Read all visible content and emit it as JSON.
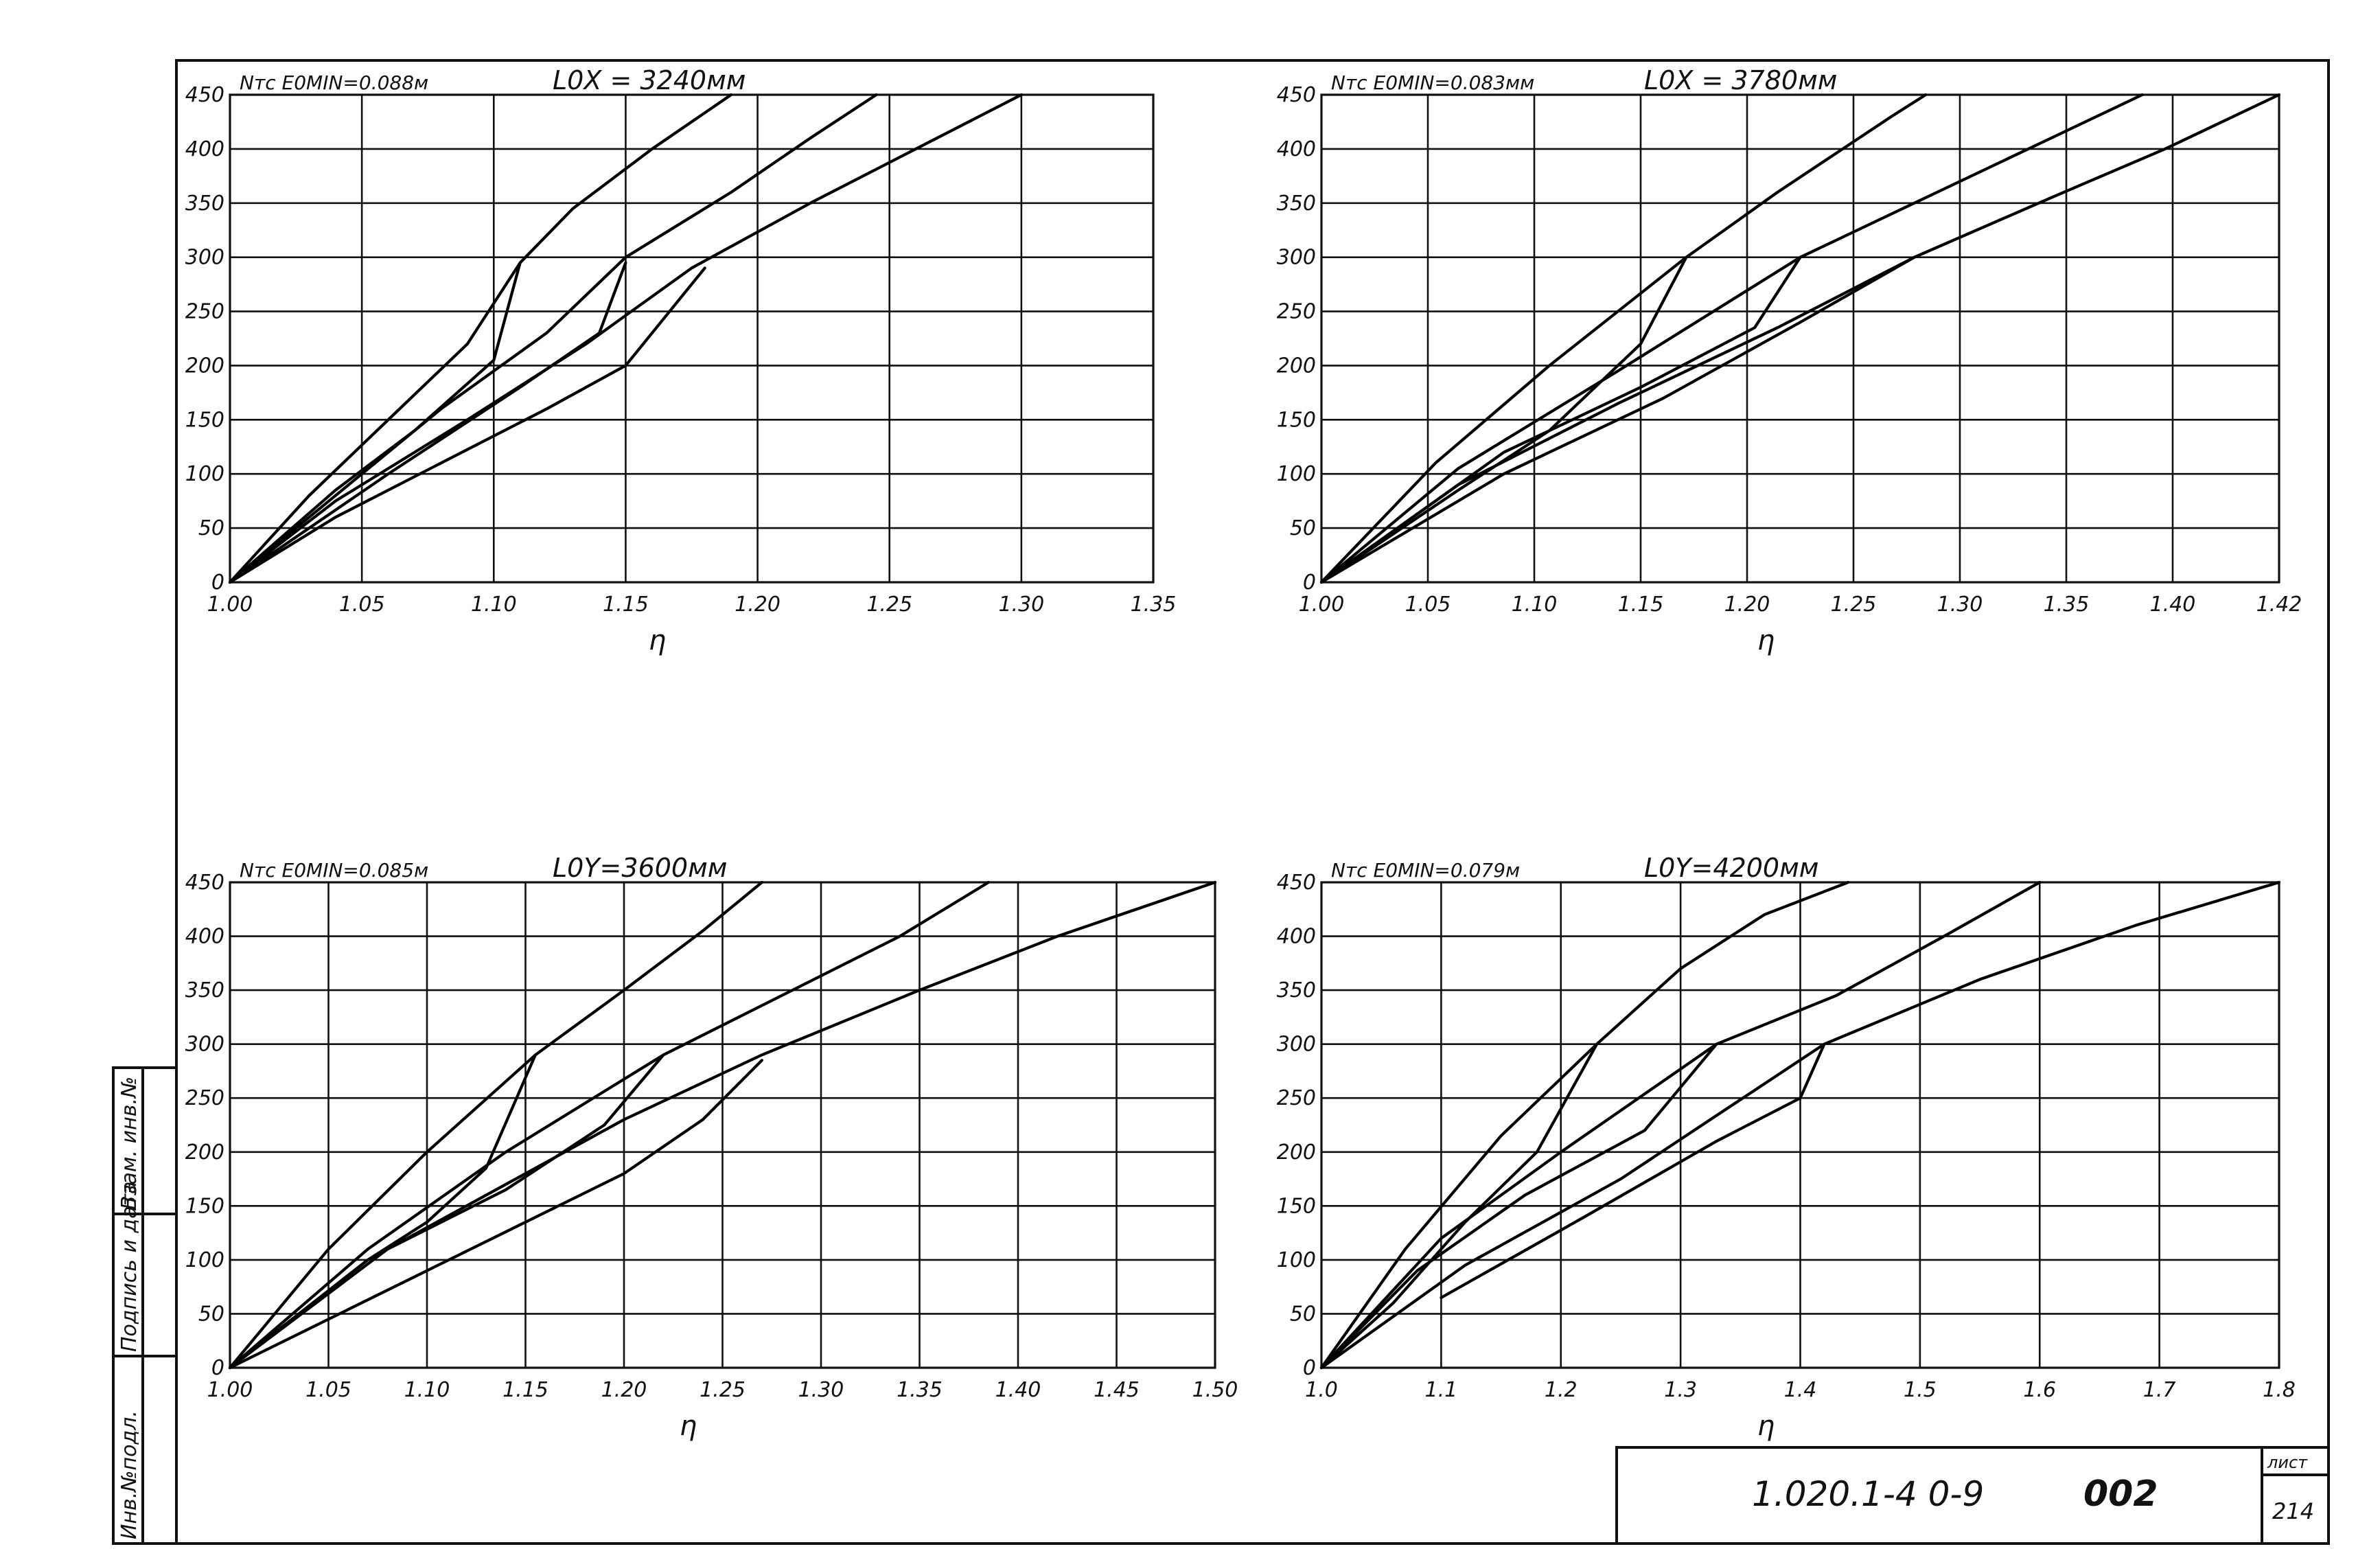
{
  "chart_data": [
    {
      "type": "line",
      "header_left": "Nтс E0MIN=0.088м",
      "header_right": "L0X = 3240мм",
      "xlabel": "η",
      "xlim": [
        1.0,
        1.35
      ],
      "ylim": [
        0,
        450
      ],
      "x_ticks": [
        "1.00",
        "1.05",
        "1.10",
        "1.15",
        "1.20",
        "1.25",
        "1.30",
        "1.35"
      ],
      "y_ticks": [
        "0",
        "50",
        "100",
        "150",
        "200",
        "250",
        "300",
        "350",
        "400",
        "450"
      ],
      "grid": true,
      "series": [
        {
          "points": [
            [
              1.0,
              0
            ],
            [
              1.03,
              80
            ],
            [
              1.06,
              150
            ],
            [
              1.09,
              220
            ],
            [
              1.11,
              295
            ],
            [
              1.13,
              345
            ],
            [
              1.16,
              400
            ],
            [
              1.19,
              450
            ]
          ]
        },
        {
          "points": [
            [
              1.0,
              0
            ],
            [
              1.04,
              80
            ],
            [
              1.08,
              160
            ],
            [
              1.12,
              230
            ],
            [
              1.15,
              300
            ],
            [
              1.19,
              360
            ],
            [
              1.22,
              410
            ],
            [
              1.245,
              450
            ]
          ]
        },
        {
          "points": [
            [
              1.0,
              0
            ],
            [
              1.04,
              75
            ],
            [
              1.09,
              150
            ],
            [
              1.135,
              220
            ],
            [
              1.175,
              290
            ],
            [
              1.22,
              350
            ],
            [
              1.26,
              400
            ],
            [
              1.3,
              450
            ]
          ]
        },
        {
          "points": [
            [
              1.0,
              0
            ],
            [
              1.04,
              60
            ],
            [
              1.08,
              110
            ],
            [
              1.12,
              160
            ],
            [
              1.15,
              200
            ],
            [
              1.18,
              290
            ]
          ]
        },
        {
          "points": [
            [
              1.0,
              0
            ],
            [
              1.04,
              85
            ],
            [
              1.07,
              140
            ],
            [
              1.1,
              205
            ],
            [
              1.11,
              295
            ]
          ]
        },
        {
          "points": [
            [
              1.0,
              0
            ],
            [
              1.06,
              100
            ],
            [
              1.11,
              180
            ],
            [
              1.14,
              230
            ],
            [
              1.15,
              295
            ]
          ]
        }
      ]
    },
    {
      "type": "line",
      "header_left": "Nтс E0MIN=0.083мм",
      "header_right": "L0X = 3780мм",
      "xlabel": "η",
      "xlim": [
        1.0,
        1.42
      ],
      "ylim": [
        0,
        450
      ],
      "x_ticks": [
        "1.00",
        "1.05",
        "1.10",
        "1.15",
        "1.20",
        "1.25",
        "1.30",
        "1.35",
        "1.40",
        "1.42"
      ],
      "y_ticks": [
        "0",
        "50",
        "100",
        "150",
        "200",
        "250",
        "300",
        "350",
        "400",
        "450"
      ],
      "grid": true,
      "series": [
        {
          "points": [
            [
              1.0,
              0
            ],
            [
              1.05,
              110
            ],
            [
              1.1,
              200
            ],
            [
              1.16,
              300
            ],
            [
              1.2,
              360
            ],
            [
              1.25,
              430
            ],
            [
              1.265,
              450
            ]
          ]
        },
        {
          "points": [
            [
              1.0,
              0
            ],
            [
              1.06,
              105
            ],
            [
              1.13,
              195
            ],
            [
              1.21,
              300
            ],
            [
              1.27,
              360
            ],
            [
              1.32,
              410
            ],
            [
              1.36,
              450
            ]
          ]
        },
        {
          "points": [
            [
              1.0,
              0
            ],
            [
              1.06,
              90
            ],
            [
              1.13,
              165
            ],
            [
              1.2,
              235
            ],
            [
              1.26,
              300
            ],
            [
              1.32,
              355
            ],
            [
              1.37,
              400
            ],
            [
              1.42,
              450
            ]
          ]
        },
        {
          "points": [
            [
              1.0,
              0
            ],
            [
              1.08,
              100
            ],
            [
              1.15,
              170
            ],
            [
              1.21,
              240
            ],
            [
              1.26,
              300
            ]
          ]
        },
        {
          "points": [
            [
              1.0,
              0
            ],
            [
              1.06,
              85
            ],
            [
              1.1,
              140
            ],
            [
              1.14,
              220
            ],
            [
              1.16,
              300
            ]
          ]
        },
        {
          "points": [
            [
              1.0,
              0
            ],
            [
              1.08,
              120
            ],
            [
              1.14,
              180
            ],
            [
              1.19,
              235
            ],
            [
              1.21,
              300
            ]
          ]
        }
      ]
    },
    {
      "type": "line",
      "header_left": "Nтс E0MIN=0.085м",
      "header_right": "L0Y=3600мм",
      "xlabel": "η",
      "xlim": [
        1.0,
        1.5
      ],
      "ylim": [
        0,
        450
      ],
      "x_ticks": [
        "1.00",
        "1.05",
        "1.10",
        "1.15",
        "1.20",
        "1.25",
        "1.30",
        "1.35",
        "1.40",
        "1.45",
        "1.50"
      ],
      "y_ticks": [
        "0",
        "50",
        "100",
        "150",
        "200",
        "250",
        "300",
        "350",
        "400",
        "450"
      ],
      "grid": true,
      "series": [
        {
          "points": [
            [
              1.0,
              0
            ],
            [
              1.05,
              110
            ],
            [
              1.1,
              200
            ],
            [
              1.155,
              290
            ],
            [
              1.2,
              350
            ],
            [
              1.24,
              405
            ],
            [
              1.27,
              450
            ]
          ]
        },
        {
          "points": [
            [
              1.0,
              0
            ],
            [
              1.07,
              110
            ],
            [
              1.14,
              200
            ],
            [
              1.22,
              290
            ],
            [
              1.28,
              345
            ],
            [
              1.34,
              400
            ],
            [
              1.385,
              450
            ]
          ]
        },
        {
          "points": [
            [
              1.0,
              0
            ],
            [
              1.07,
              100
            ],
            [
              1.15,
              180
            ],
            [
              1.2,
              230
            ],
            [
              1.27,
              290
            ],
            [
              1.35,
              350
            ],
            [
              1.42,
              400
            ],
            [
              1.5,
              450
            ]
          ]
        },
        {
          "points": [
            [
              1.0,
              0
            ],
            [
              1.1,
              90
            ],
            [
              1.2,
              180
            ],
            [
              1.24,
              230
            ],
            [
              1.27,
              285
            ]
          ]
        },
        {
          "points": [
            [
              1.0,
              0
            ],
            [
              1.07,
              100
            ],
            [
              1.1,
              135
            ],
            [
              1.13,
              185
            ],
            [
              1.155,
              290
            ]
          ]
        },
        {
          "points": [
            [
              1.0,
              0
            ],
            [
              1.08,
              110
            ],
            [
              1.14,
              165
            ],
            [
              1.19,
              225
            ],
            [
              1.22,
              290
            ]
          ]
        }
      ]
    },
    {
      "type": "line",
      "header_left": "Nтс E0MIN=0.079м",
      "header_right": "L0Y=4200мм",
      "xlabel": "η",
      "xlim": [
        1.0,
        1.8
      ],
      "ylim": [
        0,
        450
      ],
      "x_ticks": [
        "1.0",
        "1.1",
        "1.2",
        "1.3",
        "1.4",
        "1.5",
        "1.6",
        "1.7",
        "1.8"
      ],
      "y_ticks": [
        "0",
        "50",
        "100",
        "150",
        "200",
        "250",
        "300",
        "350",
        "400",
        "450"
      ],
      "grid": true,
      "series": [
        {
          "points": [
            [
              1.0,
              0
            ],
            [
              1.07,
              110
            ],
            [
              1.15,
              215
            ],
            [
              1.23,
              300
            ],
            [
              1.3,
              370
            ],
            [
              1.37,
              420
            ],
            [
              1.44,
              450
            ]
          ]
        },
        {
          "points": [
            [
              1.0,
              0
            ],
            [
              1.1,
              120
            ],
            [
              1.2,
              200
            ],
            [
              1.33,
              300
            ],
            [
              1.43,
              345
            ],
            [
              1.52,
              400
            ],
            [
              1.6,
              450
            ]
          ]
        },
        {
          "points": [
            [
              1.0,
              0
            ],
            [
              1.12,
              95
            ],
            [
              1.25,
              175
            ],
            [
              1.42,
              300
            ],
            [
              1.55,
              360
            ],
            [
              1.68,
              410
            ],
            [
              1.8,
              450
            ]
          ]
        },
        {
          "points": [
            [
              1.1,
              65
            ],
            [
              1.22,
              140
            ],
            [
              1.33,
              210
            ],
            [
              1.4,
              250
            ],
            [
              1.42,
              300
            ]
          ]
        },
        {
          "points": [
            [
              1.0,
              0
            ],
            [
              1.06,
              60
            ],
            [
              1.12,
              135
            ],
            [
              1.18,
              200
            ],
            [
              1.23,
              300
            ]
          ]
        },
        {
          "points": [
            [
              1.0,
              0
            ],
            [
              1.08,
              90
            ],
            [
              1.17,
              160
            ],
            [
              1.27,
              220
            ],
            [
              1.33,
              300
            ]
          ]
        }
      ]
    }
  ],
  "stamp": {
    "designation": "1.020.1-4 0-9",
    "code": "002",
    "sheet_label": "лист",
    "sheet_number": "214"
  },
  "side_labels": [
    "Инв.№подл.",
    "Подпись и дата",
    "Взам. инв.№"
  ],
  "colors": {
    "ink": "#111111",
    "paper": "#ffffff"
  }
}
